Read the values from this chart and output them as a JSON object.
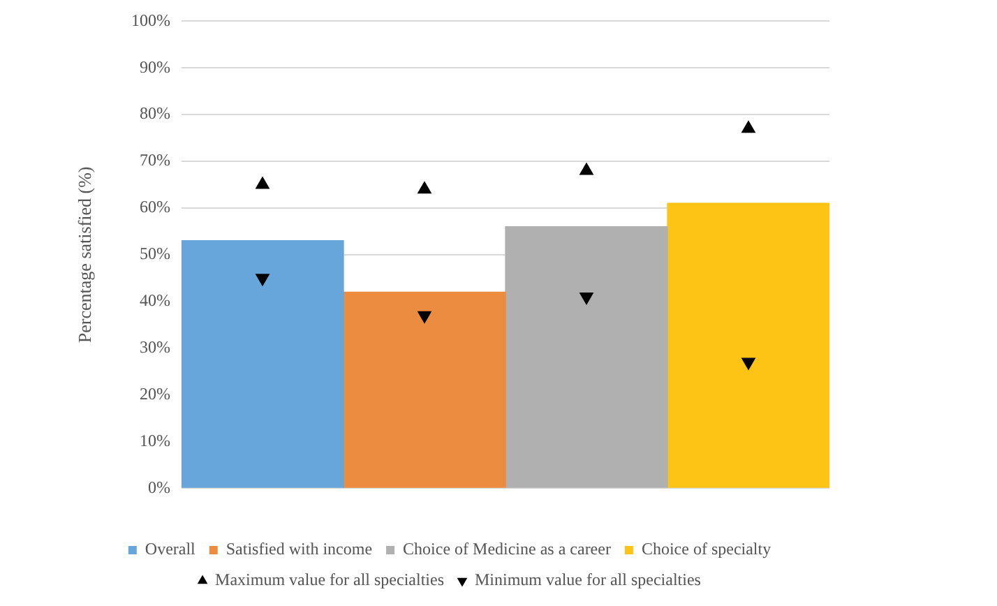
{
  "chart_data": {
    "type": "bar",
    "ylabel": "Percentage satisfied (%)",
    "categories": [
      null,
      null,
      null,
      null
    ],
    "series": [
      {
        "name": "Overall",
        "color": "#67a6da",
        "values": [
          53,
          null,
          null,
          null
        ]
      },
      {
        "name": "Satisfied with income",
        "color": "#ec8c40",
        "values": [
          null,
          42,
          null,
          null
        ]
      },
      {
        "name": "Choice of Medicine as a career",
        "color": "#b0b0b0",
        "values": [
          null,
          null,
          56,
          null
        ]
      },
      {
        "name": "Choice of specialty",
        "color": "#fdc315",
        "values": [
          null,
          null,
          null,
          61
        ]
      },
      {
        "name": "Maximum value for all specialties",
        "type": "scatter",
        "marker": "triangle",
        "color": "#000000",
        "values": [
          65,
          64,
          68,
          77
        ]
      },
      {
        "name": "Minimum value for all specialties",
        "type": "scatter",
        "marker": "triangle-down",
        "color": "#000000",
        "values": [
          45,
          37,
          41,
          27
        ]
      }
    ],
    "ylim": [
      0,
      100
    ],
    "yticks": [
      {
        "value": 0,
        "label": "0%"
      },
      {
        "value": 10,
        "label": "10%"
      },
      {
        "value": 20,
        "label": "20%"
      },
      {
        "value": 30,
        "label": "30%"
      },
      {
        "value": 40,
        "label": "40%"
      },
      {
        "value": 50,
        "label": "50%"
      },
      {
        "value": 60,
        "label": "60%"
      },
      {
        "value": 70,
        "label": "70%"
      },
      {
        "value": 80,
        "label": "80%"
      },
      {
        "value": 90,
        "label": "90%"
      },
      {
        "value": 100,
        "label": "100%"
      }
    ],
    "grid": "y",
    "legend": "bottom"
  }
}
